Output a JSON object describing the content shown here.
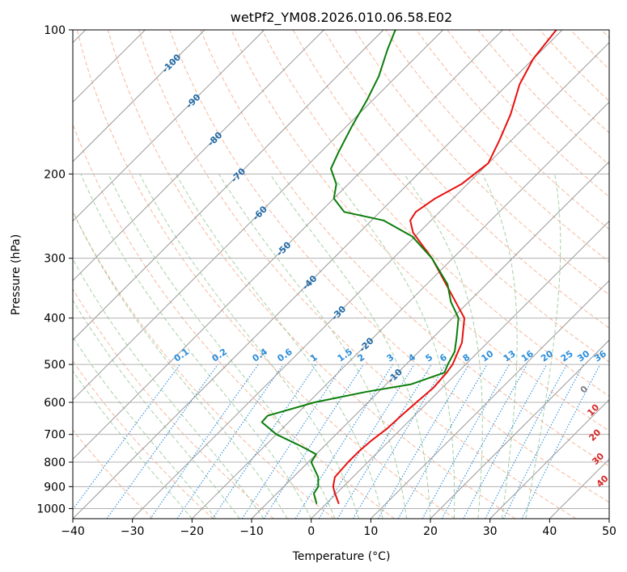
{
  "chart_data": {
    "type": "line",
    "title": "wetPf2_YM08.2026.010.06.58.E02",
    "xlabel": "Temperature (°C)",
    "ylabel": "Pressure (hPa)",
    "xlim": [
      -40,
      50
    ],
    "ylim": [
      1050,
      100
    ],
    "y_scale": "log",
    "skew": 45,
    "grid": true,
    "x_ticks": [
      "−40",
      "−30",
      "−20",
      "−10",
      "0",
      "10",
      "20",
      "30",
      "40",
      "50"
    ],
    "y_ticks": [
      "100",
      "200",
      "300",
      "400",
      "500",
      "600",
      "700",
      "800",
      "900",
      "1000"
    ],
    "colors": {
      "temperature": "#e8100f",
      "dewpoint": "#0a7d0a",
      "dry_adiabat": "#f4a582",
      "moist_adiabat": "#9ccb9c",
      "mixing_ratio": "#2a8ddb",
      "isotherm": "#999999",
      "isotherm_label": "#1f6aa8",
      "wetbulb_label": "#d62728"
    },
    "series": [
      {
        "key": "temperature",
        "points": [
          {
            "p": 975,
            "t": 2
          },
          {
            "p": 925,
            "t": -0.5
          },
          {
            "p": 900,
            "t": -1.7
          },
          {
            "p": 860,
            "t": -3
          },
          {
            "p": 800,
            "t": -3.3
          },
          {
            "p": 760,
            "t": -3.3
          },
          {
            "p": 720,
            "t": -3
          },
          {
            "p": 680,
            "t": -2.4
          },
          {
            "p": 640,
            "t": -2.2
          },
          {
            "p": 600,
            "t": -1.9
          },
          {
            "p": 560,
            "t": -1.5
          },
          {
            "p": 520,
            "t": -1.8
          },
          {
            "p": 500,
            "t": -2.2
          },
          {
            "p": 450,
            "t": -4.3
          },
          {
            "p": 400,
            "t": -8
          },
          {
            "p": 350,
            "t": -15.2
          },
          {
            "p": 300,
            "t": -23.5
          },
          {
            "p": 265,
            "t": -31
          },
          {
            "p": 250,
            "t": -33.5
          },
          {
            "p": 240,
            "t": -34
          },
          {
            "p": 225,
            "t": -33
          },
          {
            "p": 210,
            "t": -31
          },
          {
            "p": 190,
            "t": -30
          },
          {
            "p": 170,
            "t": -32
          },
          {
            "p": 150,
            "t": -34.5
          },
          {
            "p": 130,
            "t": -38
          },
          {
            "p": 115,
            "t": -40
          },
          {
            "p": 100,
            "t": -41
          }
        ]
      },
      {
        "key": "dewpoint",
        "points": [
          {
            "p": 975,
            "t": -1.7
          },
          {
            "p": 930,
            "t": -3.8
          },
          {
            "p": 900,
            "t": -4.2
          },
          {
            "p": 860,
            "t": -5.8
          },
          {
            "p": 800,
            "t": -9.5
          },
          {
            "p": 770,
            "t": -10
          },
          {
            "p": 740,
            "t": -14
          },
          {
            "p": 700,
            "t": -20
          },
          {
            "p": 660,
            "t": -24.5
          },
          {
            "p": 640,
            "t": -24.6
          },
          {
            "p": 600,
            "t": -19
          },
          {
            "p": 570,
            "t": -12
          },
          {
            "p": 550,
            "t": -5.8
          },
          {
            "p": 520,
            "t": -2.2
          },
          {
            "p": 500,
            "t": -3
          },
          {
            "p": 470,
            "t": -4
          },
          {
            "p": 440,
            "t": -6
          },
          {
            "p": 400,
            "t": -9
          },
          {
            "p": 370,
            "t": -13
          },
          {
            "p": 340,
            "t": -16.5
          },
          {
            "p": 300,
            "t": -23.5
          },
          {
            "p": 270,
            "t": -30.5
          },
          {
            "p": 250,
            "t": -38
          },
          {
            "p": 240,
            "t": -46
          },
          {
            "p": 225,
            "t": -50
          },
          {
            "p": 210,
            "t": -52
          },
          {
            "p": 195,
            "t": -55.5
          },
          {
            "p": 180,
            "t": -57
          },
          {
            "p": 160,
            "t": -59
          },
          {
            "p": 140,
            "t": -61
          },
          {
            "p": 125,
            "t": -63
          },
          {
            "p": 110,
            "t": -66
          },
          {
            "p": 100,
            "t": -68
          }
        ]
      }
    ],
    "isotherm_labels": [
      "-100",
      "-90",
      "-80",
      "-70",
      "-60",
      "-50",
      "-40",
      "-30",
      "-20",
      "-10"
    ],
    "mixing_ratio_labels": [
      "0.1",
      "0.2",
      "0.4",
      "0.6",
      "1",
      "1.5",
      "2",
      "3",
      "4",
      "5",
      "6",
      "8",
      "10",
      "13",
      "16",
      "20",
      "25",
      "30",
      "36"
    ],
    "wetbulb_labels": [
      "0",
      "10",
      "20",
      "30",
      "40"
    ]
  }
}
